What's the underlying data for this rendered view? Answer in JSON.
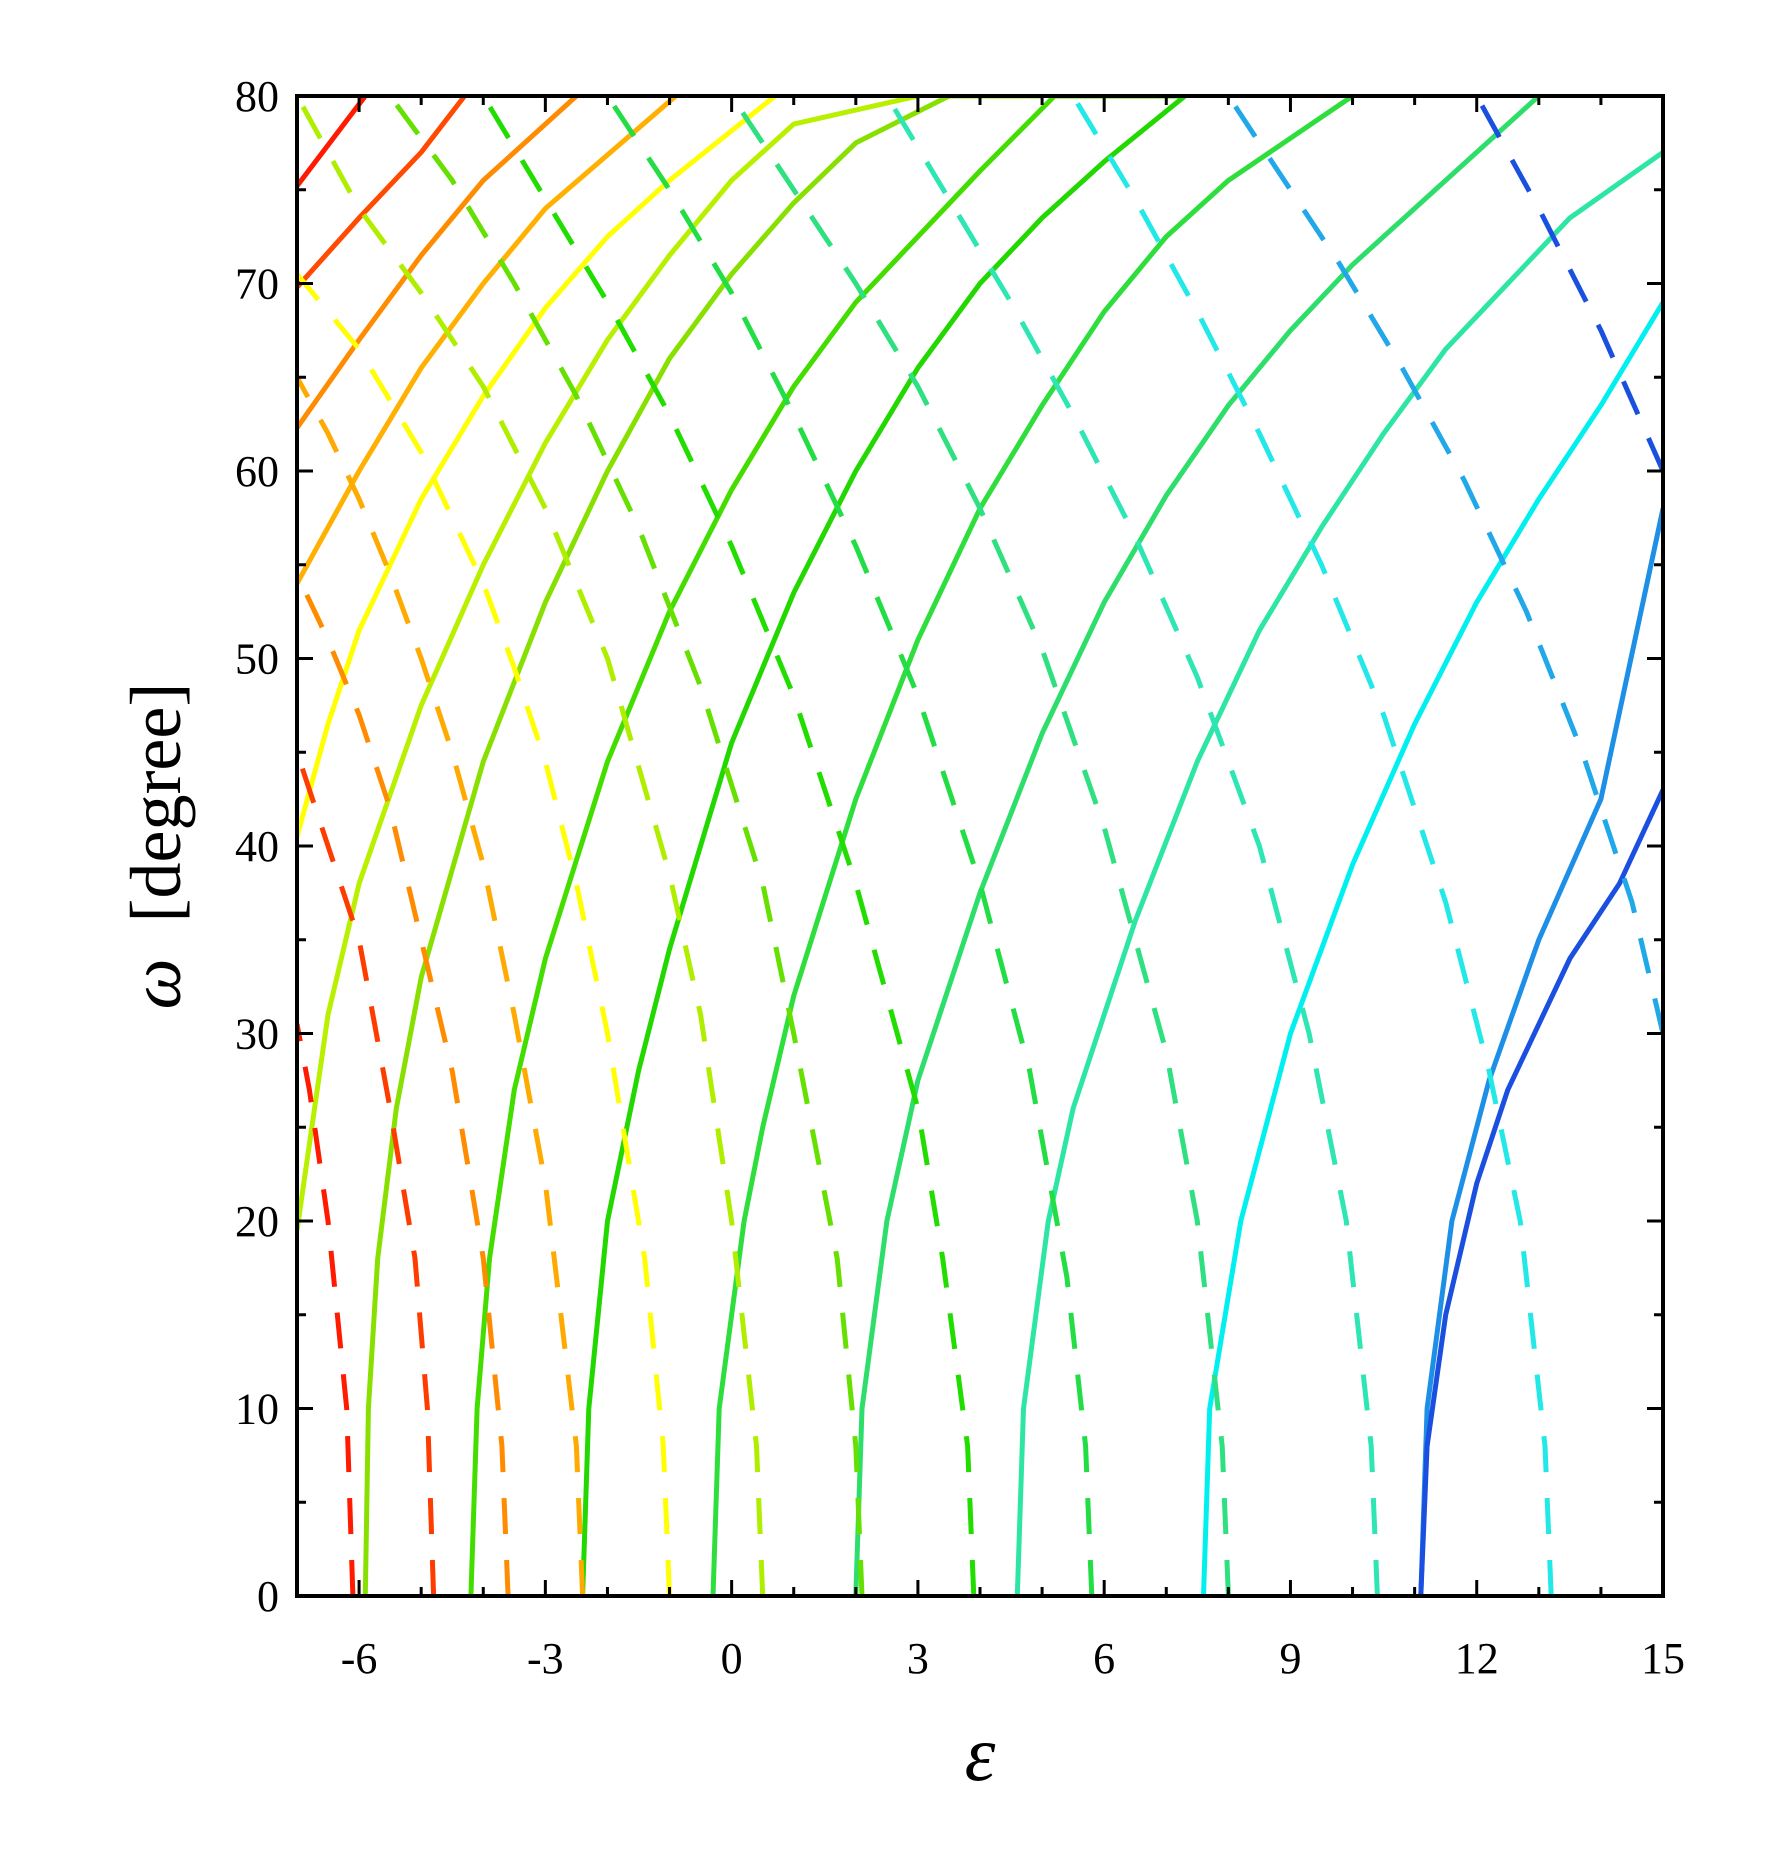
{
  "chart_data": {
    "type": "line",
    "title": "",
    "xlabel": "ε",
    "ylabel_symbol": "ω",
    "ylabel_unit": "[degree]",
    "xlim": [
      -7,
      15
    ],
    "ylim": [
      0,
      80
    ],
    "xticks": [
      -6,
      -3,
      0,
      3,
      6,
      9,
      12,
      15
    ],
    "yticks": [
      0,
      10,
      20,
      30,
      40,
      50,
      60,
      70,
      80
    ],
    "xtick_labels": [
      "-6",
      "-3",
      "0",
      "3",
      "6",
      "9",
      "12",
      "15"
    ],
    "ytick_labels": [
      "0",
      "10",
      "20",
      "30",
      "40",
      "50",
      "60",
      "70",
      "80"
    ],
    "grid": false,
    "legend": "none",
    "solid_series": [
      {
        "color": "#ff1a00",
        "points": [
          [
            -7.0,
            75.2
          ],
          [
            -5.9,
            80
          ]
        ]
      },
      {
        "color": "#ff4a00",
        "points": [
          [
            -7.0,
            69.8
          ],
          [
            -6.0,
            73.5
          ],
          [
            -5.0,
            77.0
          ],
          [
            -4.3,
            80
          ]
        ]
      },
      {
        "color": "#ff8c00",
        "points": [
          [
            -7.0,
            62.3
          ],
          [
            -6.0,
            67.0
          ],
          [
            -5.0,
            71.5
          ],
          [
            -4.0,
            75.5
          ],
          [
            -2.5,
            80
          ]
        ]
      },
      {
        "color": "#ffb000",
        "points": [
          [
            -7.0,
            54.0
          ],
          [
            -6.0,
            60.0
          ],
          [
            -5.0,
            65.5
          ],
          [
            -4.0,
            70.0
          ],
          [
            -3.0,
            74.0
          ],
          [
            -0.9,
            80
          ]
        ]
      },
      {
        "color": "#ffff00",
        "points": [
          [
            -7.0,
            40.5
          ],
          [
            -6.5,
            46.5
          ],
          [
            -6.0,
            51.5
          ],
          [
            -5.0,
            58.5
          ],
          [
            -4.0,
            64.0
          ],
          [
            -3.0,
            68.7
          ],
          [
            -2.0,
            72.5
          ],
          [
            -1.0,
            75.5
          ],
          [
            0.7,
            80
          ]
        ]
      },
      {
        "color": "#b8f000",
        "points": [
          [
            -7.0,
            19.5
          ],
          [
            -6.5,
            31.0
          ],
          [
            -6.0,
            38.0
          ],
          [
            -5.0,
            47.5
          ],
          [
            -4.0,
            55.0
          ],
          [
            -3.0,
            61.5
          ],
          [
            -2.0,
            67.0
          ],
          [
            -1.0,
            71.5
          ],
          [
            0.0,
            75.5
          ],
          [
            1.0,
            78.5
          ],
          [
            3.0,
            80
          ]
        ]
      },
      {
        "color": "#88e000",
        "points": [
          [
            -5.9,
            0.0
          ],
          [
            -5.85,
            10.0
          ],
          [
            -5.7,
            18.0
          ],
          [
            -5.4,
            26.0
          ],
          [
            -5.0,
            33.0
          ],
          [
            -4.0,
            44.5
          ],
          [
            -3.0,
            53.0
          ],
          [
            -2.0,
            60.0
          ],
          [
            -1.0,
            66.0
          ],
          [
            0.0,
            70.5
          ],
          [
            1.0,
            74.3
          ],
          [
            2.0,
            77.5
          ],
          [
            3.5,
            80
          ],
          [
            5.0,
            80
          ]
        ]
      },
      {
        "color": "#44dd00",
        "points": [
          [
            -4.2,
            0.0
          ],
          [
            -4.1,
            10.0
          ],
          [
            -3.9,
            18.0
          ],
          [
            -3.5,
            27.0
          ],
          [
            -3.0,
            34.0
          ],
          [
            -2.0,
            44.5
          ],
          [
            -1.0,
            52.5
          ],
          [
            0.0,
            59.0
          ],
          [
            1.0,
            64.5
          ],
          [
            2.0,
            69.0
          ],
          [
            3.0,
            72.5
          ],
          [
            4.0,
            76.0
          ],
          [
            5.2,
            80
          ],
          [
            7.3,
            80
          ]
        ]
      },
      {
        "color": "#22d800",
        "points": [
          [
            -2.4,
            0.0
          ],
          [
            -2.3,
            10.0
          ],
          [
            -2.0,
            20.0
          ],
          [
            -1.5,
            28.0
          ],
          [
            -1.0,
            34.5
          ],
          [
            0.0,
            45.5
          ],
          [
            1.0,
            53.5
          ],
          [
            2.0,
            60.0
          ],
          [
            3.0,
            65.5
          ],
          [
            4.0,
            70.0
          ],
          [
            5.0,
            73.5
          ],
          [
            6.0,
            76.5
          ],
          [
            7.3,
            80
          ]
        ]
      },
      {
        "color": "#2ede3c",
        "points": [
          [
            -0.3,
            0.0
          ],
          [
            -0.2,
            10.0
          ],
          [
            0.2,
            20.0
          ],
          [
            0.5,
            25.0
          ],
          [
            1.0,
            32.0
          ],
          [
            2.0,
            42.5
          ],
          [
            3.0,
            51.0
          ],
          [
            4.0,
            58.0
          ],
          [
            5.0,
            63.5
          ],
          [
            6.0,
            68.5
          ],
          [
            7.0,
            72.5
          ],
          [
            8.0,
            75.5
          ],
          [
            10.0,
            80
          ]
        ]
      },
      {
        "color": "#2ede6a",
        "points": [
          [
            2.0,
            0.0
          ],
          [
            2.1,
            10.0
          ],
          [
            2.5,
            20.0
          ],
          [
            3.0,
            27.5
          ],
          [
            4.0,
            37.5
          ],
          [
            5.0,
            46.0
          ],
          [
            6.0,
            53.0
          ],
          [
            7.0,
            58.7
          ],
          [
            8.0,
            63.5
          ],
          [
            9.0,
            67.5
          ],
          [
            10.0,
            71.0
          ],
          [
            11.0,
            74.0
          ],
          [
            13.0,
            80
          ]
        ]
      },
      {
        "color": "#2ee6a4",
        "points": [
          [
            4.6,
            0.0
          ],
          [
            4.7,
            10.0
          ],
          [
            5.1,
            20.0
          ],
          [
            5.5,
            26.0
          ],
          [
            6.5,
            36.0
          ],
          [
            7.5,
            44.5
          ],
          [
            8.5,
            51.5
          ],
          [
            9.5,
            57.0
          ],
          [
            10.5,
            62.0
          ],
          [
            11.5,
            66.5
          ],
          [
            12.5,
            70.0
          ],
          [
            13.5,
            73.5
          ],
          [
            15.0,
            77.0
          ]
        ]
      },
      {
        "color": "#00f0f0",
        "points": [
          [
            7.6,
            0.0
          ],
          [
            7.7,
            10.0
          ],
          [
            8.2,
            20.0
          ],
          [
            9.0,
            30.0
          ],
          [
            10.0,
            39.0
          ],
          [
            11.0,
            46.5
          ],
          [
            12.0,
            53.0
          ],
          [
            13.0,
            58.5
          ],
          [
            14.0,
            63.5
          ],
          [
            15.0,
            69.0
          ]
        ]
      },
      {
        "color": "#1e8fe6",
        "points": [
          [
            11.1,
            0.0
          ],
          [
            11.2,
            10.0
          ],
          [
            11.6,
            20.0
          ],
          [
            12.2,
            27.5
          ],
          [
            13.0,
            35.0
          ],
          [
            14.0,
            42.5
          ],
          [
            15.0,
            58.0
          ]
        ]
      },
      {
        "color": "#1a4fe0",
        "points": [
          [
            11.1,
            0.0
          ],
          [
            11.2,
            8.0
          ],
          [
            11.5,
            15.0
          ],
          [
            12.0,
            22.0
          ],
          [
            12.5,
            27.0
          ],
          [
            13.5,
            34.0
          ],
          [
            14.3,
            38.0
          ],
          [
            15.0,
            43.0
          ]
        ]
      }
    ],
    "dashed_series": [
      {
        "color": "#ff1a00",
        "points": [
          [
            -6.1,
            0.0
          ],
          [
            -6.2,
            10.0
          ],
          [
            -6.5,
            20.0
          ],
          [
            -6.8,
            27.0
          ],
          [
            -7.0,
            30.5
          ]
        ]
      },
      {
        "color": "#ff3c00",
        "points": [
          [
            -4.8,
            0.0
          ],
          [
            -4.9,
            10.0
          ],
          [
            -5.1,
            18.0
          ],
          [
            -5.5,
            26.0
          ],
          [
            -6.0,
            35.0
          ],
          [
            -6.5,
            40.0
          ],
          [
            -7.0,
            45.0
          ]
        ]
      },
      {
        "color": "#ff8c00",
        "points": [
          [
            -3.6,
            0.0
          ],
          [
            -3.7,
            8.0
          ],
          [
            -4.0,
            18.0
          ],
          [
            -4.5,
            28.0
          ],
          [
            -5.0,
            35.0
          ],
          [
            -5.5,
            42.0
          ],
          [
            -6.0,
            47.0
          ],
          [
            -6.5,
            51.0
          ],
          [
            -7.0,
            54.5
          ]
        ]
      },
      {
        "color": "#ffaa00",
        "points": [
          [
            -2.4,
            0.0
          ],
          [
            -2.5,
            8.0
          ],
          [
            -3.0,
            22.0
          ],
          [
            -3.5,
            31.0
          ],
          [
            -4.0,
            39.0
          ],
          [
            -4.5,
            45.0
          ],
          [
            -5.0,
            50.0
          ],
          [
            -5.5,
            54.5
          ],
          [
            -6.0,
            58.5
          ],
          [
            -6.5,
            62.0
          ],
          [
            -7.0,
            65.0
          ]
        ]
      },
      {
        "color": "#ffff00",
        "points": [
          [
            -1.0,
            0.0
          ],
          [
            -1.1,
            8.0
          ],
          [
            -1.4,
            18.0
          ],
          [
            -2.0,
            30.0
          ],
          [
            -2.5,
            38.0
          ],
          [
            -3.0,
            44.5
          ],
          [
            -3.5,
            49.5
          ],
          [
            -4.0,
            54.0
          ],
          [
            -5.0,
            61.0
          ],
          [
            -6.0,
            66.5
          ],
          [
            -7.0,
            70.5
          ]
        ]
      },
      {
        "color": "#b0ee00",
        "points": [
          [
            0.5,
            0.0
          ],
          [
            0.4,
            8.0
          ],
          [
            0.0,
            20.0
          ],
          [
            -0.5,
            31.0
          ],
          [
            -1.0,
            38.5
          ],
          [
            -2.0,
            50.0
          ],
          [
            -3.0,
            58.0
          ],
          [
            -4.0,
            64.5
          ],
          [
            -5.0,
            69.5
          ],
          [
            -6.0,
            74.0
          ],
          [
            -7.0,
            80.0
          ]
        ]
      },
      {
        "color": "#66e000",
        "points": [
          [
            2.1,
            0.0
          ],
          [
            2.0,
            8.0
          ],
          [
            1.7,
            18.0
          ],
          [
            1.0,
            30.0
          ],
          [
            0.5,
            38.0
          ],
          [
            -0.5,
            48.5
          ],
          [
            -1.5,
            57.0
          ],
          [
            -2.5,
            64.0
          ],
          [
            -3.5,
            70.0
          ],
          [
            -4.5,
            75.5
          ],
          [
            -5.5,
            80.0
          ]
        ]
      },
      {
        "color": "#22dd00",
        "points": [
          [
            3.9,
            0.0
          ],
          [
            3.8,
            8.0
          ],
          [
            3.4,
            18.0
          ],
          [
            3.0,
            26.0
          ],
          [
            2.0,
            38.0
          ],
          [
            1.0,
            48.0
          ],
          [
            0.0,
            56.0
          ],
          [
            -1.0,
            63.0
          ],
          [
            -2.0,
            69.0
          ],
          [
            -3.0,
            74.5
          ],
          [
            -4.0,
            80.0
          ]
        ]
      },
      {
        "color": "#22de44",
        "points": [
          [
            5.8,
            0.0
          ],
          [
            5.7,
            8.0
          ],
          [
            5.4,
            17.0
          ],
          [
            4.8,
            28.0
          ],
          [
            4.0,
            38.0
          ],
          [
            3.0,
            48.0
          ],
          [
            2.0,
            56.0
          ],
          [
            1.0,
            63.0
          ],
          [
            0.0,
            69.5
          ],
          [
            -1.0,
            75.0
          ],
          [
            -2.0,
            80.0
          ]
        ]
      },
      {
        "color": "#2ee080",
        "points": [
          [
            8.0,
            0.0
          ],
          [
            7.9,
            8.0
          ],
          [
            7.5,
            20.0
          ],
          [
            7.0,
            29.0
          ],
          [
            6.0,
            41.0
          ],
          [
            5.0,
            50.5
          ],
          [
            4.0,
            58.0
          ],
          [
            3.0,
            64.5
          ],
          [
            2.0,
            70.0
          ],
          [
            1.0,
            75.0
          ],
          [
            0.0,
            80.0
          ]
        ]
      },
      {
        "color": "#2ee6b4",
        "points": [
          [
            10.4,
            0.0
          ],
          [
            10.3,
            8.0
          ],
          [
            9.9,
            20.0
          ],
          [
            9.3,
            30.0
          ],
          [
            8.5,
            40.0
          ],
          [
            7.5,
            49.0
          ],
          [
            6.5,
            56.5
          ],
          [
            5.5,
            63.0
          ],
          [
            4.5,
            69.0
          ],
          [
            3.5,
            74.5
          ],
          [
            2.5,
            80.0
          ]
        ]
      },
      {
        "color": "#22e8e8",
        "points": [
          [
            13.2,
            0.0
          ],
          [
            13.1,
            8.0
          ],
          [
            12.7,
            20.0
          ],
          [
            12.2,
            28.0
          ],
          [
            11.5,
            37.0
          ],
          [
            10.5,
            47.0
          ],
          [
            9.5,
            55.0
          ],
          [
            8.5,
            62.0
          ],
          [
            7.5,
            68.5
          ],
          [
            6.5,
            74.5
          ],
          [
            5.5,
            80.0
          ]
        ]
      },
      {
        "color": "#20a8e8",
        "points": [
          [
            15.0,
            30.0
          ],
          [
            14.5,
            37.0
          ],
          [
            13.7,
            45.0
          ],
          [
            12.8,
            52.5
          ],
          [
            11.8,
            59.5
          ],
          [
            10.8,
            65.5
          ],
          [
            9.8,
            71.0
          ],
          [
            8.8,
            76.0
          ],
          [
            8.0,
            80.0
          ]
        ]
      },
      {
        "color": "#1a50e0",
        "points": [
          [
            15.0,
            60.0
          ],
          [
            14.0,
            67.5
          ],
          [
            13.0,
            74.0
          ],
          [
            12.0,
            80.0
          ]
        ]
      }
    ]
  }
}
